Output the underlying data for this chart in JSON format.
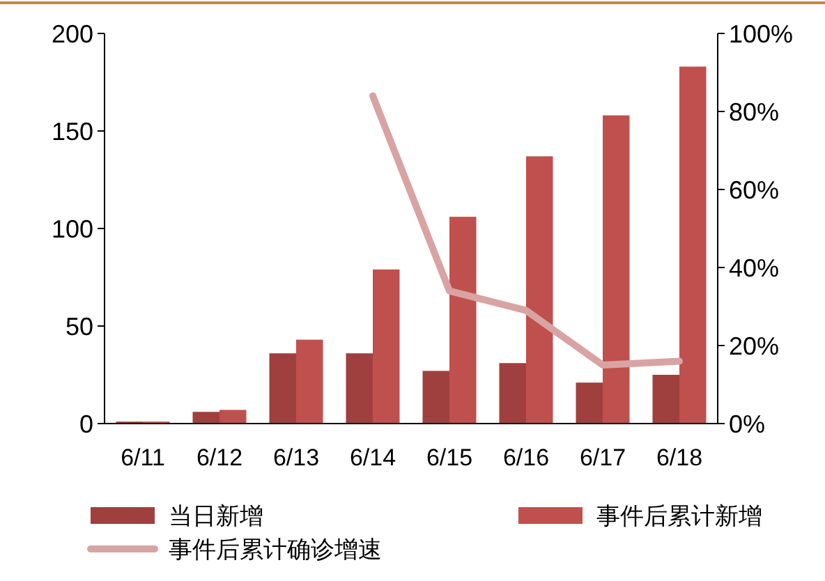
{
  "chart_data": {
    "type": "bar",
    "categories": [
      "6/11",
      "6/12",
      "6/13",
      "6/14",
      "6/15",
      "6/16",
      "6/17",
      "6/18"
    ],
    "series": [
      {
        "name": "当日新增",
        "color": "#a0403e",
        "values": [
          1,
          6,
          36,
          36,
          27,
          31,
          21,
          25
        ]
      },
      {
        "name": "事件后累计新增",
        "color": "#c0504d",
        "values": [
          1,
          7,
          43,
          79,
          106,
          137,
          158,
          183
        ]
      },
      {
        "name": "事件后累计确诊增速",
        "type": "line",
        "axis": "y2",
        "color": "#d9a3a3",
        "values": [
          null,
          null,
          null,
          0.84,
          0.34,
          0.29,
          0.15,
          0.16
        ]
      }
    ],
    "ylim": [
      0,
      200
    ],
    "yticks": [
      0,
      50,
      100,
      150,
      200
    ],
    "y2lim": [
      0,
      1
    ],
    "y2ticks": [
      {
        "value": 0,
        "label": "0%"
      },
      {
        "value": 0.2,
        "label": "20%"
      },
      {
        "value": 0.4,
        "label": "40%"
      },
      {
        "value": 0.6,
        "label": "60%"
      },
      {
        "value": 0.8,
        "label": "80%"
      },
      {
        "value": 1,
        "label": "100%"
      }
    ],
    "legend": "bottom",
    "grid": false
  }
}
